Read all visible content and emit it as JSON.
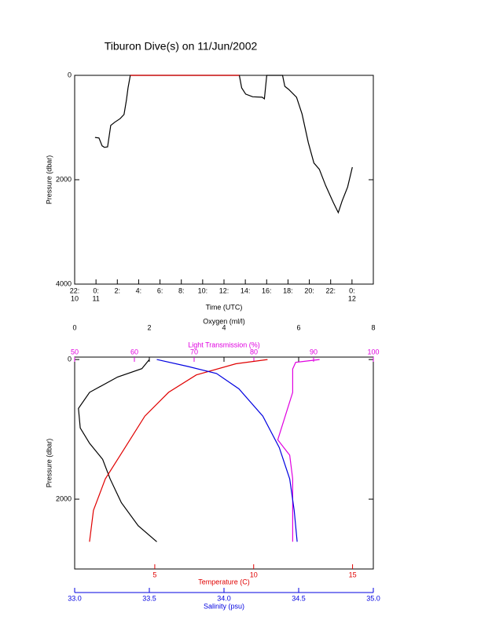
{
  "chart_data": [
    {
      "type": "line",
      "title": "Tiburon Dive(s) on 11/Jun/2002",
      "xlabel": "Time (UTC)",
      "ylabel": "Pressure (dbar)",
      "xlim": [
        -2,
        26
      ],
      "xticks": [
        {
          "value": -2,
          "label": "22:"
        },
        {
          "value": 0,
          "label": "0:"
        },
        {
          "value": 2,
          "label": "2:"
        },
        {
          "value": 4,
          "label": "4:"
        },
        {
          "value": 6,
          "label": "6:"
        },
        {
          "value": 8,
          "label": "8:"
        },
        {
          "value": 10,
          "label": "10:"
        },
        {
          "value": 12,
          "label": "12:"
        },
        {
          "value": 14,
          "label": "14:"
        },
        {
          "value": 16,
          "label": "16:"
        },
        {
          "value": 18,
          "label": "18:"
        },
        {
          "value": 20,
          "label": "20:"
        },
        {
          "value": 22,
          "label": "22:"
        },
        {
          "value": 24,
          "label": "0:"
        }
      ],
      "x_date_ticks": [
        {
          "value": -2,
          "label": "10"
        },
        {
          "value": 0,
          "label": "11"
        },
        {
          "value": 24,
          "label": "12"
        }
      ],
      "ylim": [
        0,
        4000
      ],
      "y_inverted": true,
      "yticks": [
        0,
        2000,
        4000
      ],
      "series": [
        {
          "color": "#000000",
          "x": [
            -0.09,
            0.28,
            0.57,
            0.79,
            1.09,
            1.38,
            1.75,
            2.26,
            2.63,
            2.85,
            3.0,
            3.22,
            13.44,
            13.66,
            14.03,
            14.69,
            15.57,
            15.79,
            16.01,
            17.49,
            17.7,
            18.07,
            18.8,
            19.32,
            19.91,
            20.43,
            20.94,
            21.53,
            22.26,
            22.71,
            23.07,
            23.59,
            24.03
          ],
          "values": [
            1190,
            1200,
            1350,
            1380,
            1370,
            960,
            900,
            830,
            750,
            480,
            240,
            0,
            0,
            240,
            360,
            410,
            420,
            450,
            0,
            0,
            210,
            270,
            420,
            740,
            1290,
            1680,
            1800,
            2110,
            2440,
            2630,
            2410,
            2140,
            1760
          ]
        },
        {
          "color": "#e00000",
          "x": [
            3.22,
            13.44
          ],
          "values": [
            0,
            0
          ]
        }
      ]
    },
    {
      "type": "profile",
      "ylabel": "Pressure (dbar)",
      "ylim": [
        -35,
        3000
      ],
      "y_inverted": true,
      "yticks": [
        0,
        2000
      ],
      "x_axes": [
        {
          "label": "Oxygen (ml/l)",
          "position": "top",
          "color": "#000000",
          "xlim": [
            0,
            8
          ],
          "xticks": [
            0,
            2,
            4,
            6,
            8
          ],
          "x": [
            2.0,
            1.8,
            1.15,
            0.4,
            0.1,
            0.15,
            0.4,
            0.75,
            0.95,
            1.25,
            1.7,
            2.2
          ],
          "values": [
            0,
            130,
            250,
            470,
            700,
            980,
            1200,
            1430,
            1710,
            2050,
            2380,
            2610
          ]
        },
        {
          "label": "Light Transmission (%)",
          "position": "top-inner",
          "color": "#e000e0",
          "xlim": [
            50,
            100
          ],
          "xticks": [
            50,
            60,
            70,
            80,
            90,
            100
          ],
          "x": [
            91,
            87,
            86.5,
            86.5,
            84,
            86,
            86.5,
            86.5
          ],
          "values": [
            0,
            40,
            135,
            470,
            1150,
            1370,
            1710,
            2610
          ]
        },
        {
          "label": "Temperature (C)",
          "position": "bottom",
          "color": "#e00000",
          "xlim": [
            0.95,
            16.05
          ],
          "xticks": [
            5,
            10,
            15
          ],
          "x": [
            10.7,
            9.1,
            7.1,
            5.7,
            4.5,
            3.5,
            2.5,
            1.9,
            1.7
          ],
          "values": [
            0,
            60,
            220,
            470,
            810,
            1260,
            1710,
            2160,
            2610
          ]
        },
        {
          "label": "Salinity (psu)",
          "position": "bottom-outer",
          "color": "#0000e0",
          "xlim": [
            33.0,
            35.0
          ],
          "xticks": [
            {
              "value": 33.0,
              "label": "33.0"
            },
            33.5,
            {
              "value": 34.0,
              "label": "34.0"
            },
            34.5,
            {
              "value": 35.0,
              "label": "35.0"
            }
          ],
          "x": [
            33.55,
            33.76,
            33.95,
            34.1,
            34.26,
            34.37,
            34.44,
            34.47,
            34.49
          ],
          "values": [
            0,
            100,
            200,
            420,
            810,
            1260,
            1710,
            2160,
            2610
          ]
        }
      ]
    }
  ]
}
